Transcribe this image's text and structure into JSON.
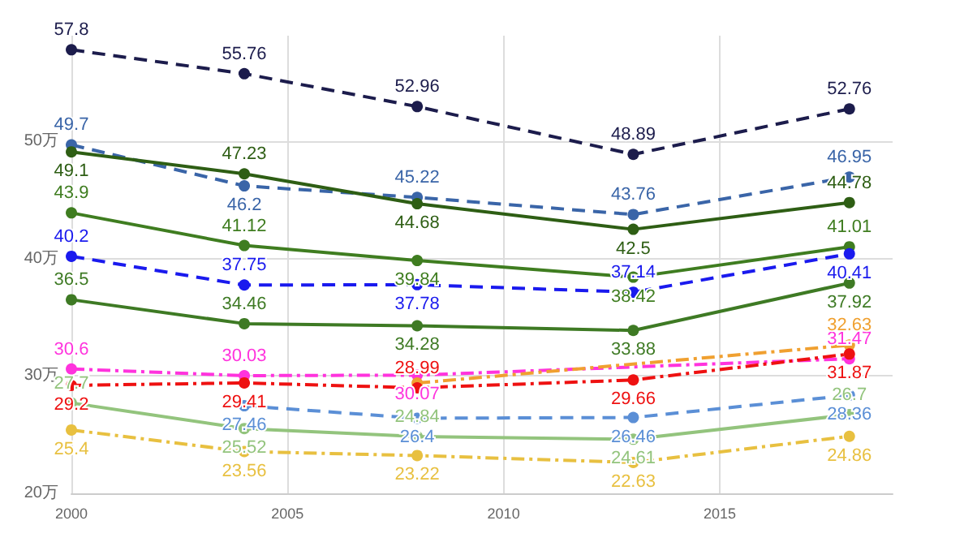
{
  "chart_data": {
    "type": "line",
    "x": [
      2000,
      2004,
      2008,
      2013,
      2018
    ],
    "xlim": [
      2000,
      2019
    ],
    "xticks": [
      2000,
      2005,
      2010,
      2015
    ],
    "ylim": [
      20,
      59
    ],
    "yticks": [
      {
        "value": 20,
        "label": "20万"
      },
      {
        "value": 30,
        "label": "30万"
      },
      {
        "value": 40,
        "label": "40万"
      },
      {
        "value": 50,
        "label": "50万"
      }
    ],
    "grid": true,
    "marker": "circle",
    "series": [
      {
        "color": "#1c1c4c",
        "line_style": "dashed",
        "values": [
          57.8,
          55.76,
          52.96,
          48.89,
          52.76
        ],
        "value_labels": [
          "57.8",
          "55.76",
          "52.96",
          "48.89",
          "52.76"
        ]
      },
      {
        "color": "#3a65a8",
        "line_style": "dashed",
        "values": [
          49.7,
          46.2,
          45.22,
          43.76,
          46.95
        ],
        "value_labels": [
          "49.7",
          "46.2",
          "45.22",
          "43.76",
          "46.95"
        ]
      },
      {
        "color": "#2e5e14",
        "line_style": "solid",
        "values": [
          49.1,
          47.23,
          44.68,
          42.5,
          44.78
        ],
        "value_labels": [
          "49.1",
          "47.23",
          "44.68",
          "42.5",
          "44.78"
        ]
      },
      {
        "color": "#3f7d20",
        "line_style": "solid",
        "values": [
          43.9,
          41.12,
          39.84,
          38.42,
          41.01
        ],
        "value_labels": [
          "43.9",
          "41.12",
          "39.84",
          "38.42",
          "41.01"
        ]
      },
      {
        "color": "#1a1aee",
        "line_style": "dashed",
        "values": [
          40.2,
          37.75,
          37.78,
          37.14,
          40.41
        ],
        "value_labels": [
          "40.2",
          "37.75",
          "37.78",
          "37.14",
          "40.41"
        ]
      },
      {
        "color": "#3e7a24",
        "line_style": "solid",
        "values": [
          36.5,
          34.46,
          34.28,
          33.88,
          37.92
        ],
        "value_labels": [
          "36.5",
          "34.46",
          "34.28",
          "33.88",
          "37.92"
        ]
      },
      {
        "color": "#ff33dd",
        "line_style": "dashdot",
        "values": [
          30.6,
          30.03,
          30.07,
          null,
          31.47
        ],
        "value_labels": [
          "30.6",
          "30.03",
          "30.07",
          null,
          "31.47"
        ]
      },
      {
        "color": "#f0a030",
        "line_style": "dashdot",
        "values": [
          null,
          null,
          29.4,
          null,
          32.63
        ],
        "value_labels": [
          null,
          null,
          null,
          null,
          "32.63"
        ]
      },
      {
        "color": "#ee1111",
        "line_style": "dashdot",
        "values": [
          29.2,
          29.41,
          28.99,
          29.66,
          31.87
        ],
        "value_labels": [
          "29.2",
          "29.41",
          "28.99",
          "29.66",
          "31.87"
        ]
      },
      {
        "color": "#5b8fd6",
        "line_style": "dashed",
        "values": [
          null,
          27.46,
          26.4,
          26.46,
          28.36
        ],
        "value_labels": [
          null,
          "27.46",
          "26.4",
          "26.46",
          "28.36"
        ]
      },
      {
        "color": "#93c47d",
        "line_style": "solid",
        "values": [
          27.7,
          25.52,
          24.84,
          24.61,
          26.7
        ],
        "value_labels": [
          "27.7",
          "25.52",
          "24.84",
          "24.61",
          "26.7"
        ]
      },
      {
        "color": "#e8c040",
        "line_style": "dashdot",
        "values": [
          25.4,
          23.56,
          23.22,
          22.63,
          24.86
        ],
        "value_labels": [
          "25.4",
          "23.56",
          "23.22",
          "22.63",
          "24.86"
        ]
      }
    ]
  }
}
